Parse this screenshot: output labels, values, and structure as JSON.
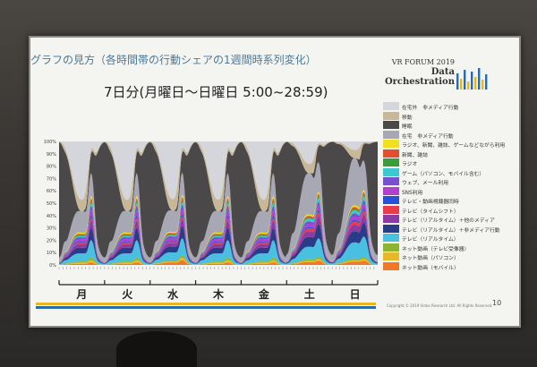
{
  "slide": {
    "title": "グラフの見方（各時間帯の行動シェアの1週間時系列変化）",
    "subtitle": "7日分(月曜日～日曜日 5:00~28:59)",
    "brand_line1": "VR FORUM 2019",
    "brand_line2": "Data",
    "brand_line3": "Orchestration",
    "copyright": "Copyright © 2019 Video Research Ltd. All Rights Reserved.",
    "page_number": "10"
  },
  "chart_data": {
    "type": "area",
    "stacked": true,
    "normalized": true,
    "title": "",
    "xlabel": "",
    "ylabel": "",
    "y_ticks": [
      "0%",
      "10%",
      "20%",
      "30%",
      "40%",
      "50%",
      "60%",
      "70%",
      "80%",
      "90%",
      "100%"
    ],
    "ylim": [
      0,
      100
    ],
    "day_labels": [
      "月",
      "火",
      "水",
      "木",
      "金",
      "土",
      "日"
    ],
    "x_range": [
      "5:00",
      "28:59"
    ],
    "series": [
      {
        "name": "ネット動画（モバイル）",
        "color": "#f07828",
        "values": [
          1,
          1,
          2,
          1,
          1,
          2,
          2
        ]
      },
      {
        "name": "ネット動画（パソコン）",
        "color": "#e8b828",
        "values": [
          1,
          1,
          1,
          1,
          1,
          1,
          1
        ]
      },
      {
        "name": "ネット動画（テレビ受像器）",
        "color": "#8cb432",
        "values": [
          1,
          1,
          1,
          1,
          1,
          1,
          1
        ]
      },
      {
        "name": "テレビ（リアルタイム）",
        "color": "#4ac0e0",
        "values": [
          7,
          7,
          7,
          7,
          7,
          9,
          10
        ]
      },
      {
        "name": "テレビ（リアルタイム）＋非メディア行動",
        "color": "#283c88",
        "values": [
          5,
          5,
          5,
          5,
          5,
          7,
          7
        ]
      },
      {
        "name": "テレビ（リアルタイム）＋他のメディア",
        "color": "#8c3ca0",
        "values": [
          3,
          3,
          3,
          3,
          3,
          4,
          4
        ]
      },
      {
        "name": "テレビ（タイムシフト）",
        "color": "#e83c4c",
        "values": [
          1,
          1,
          1,
          1,
          1,
          2,
          2
        ]
      },
      {
        "name": "テレビ・動画視聴器同時",
        "color": "#2850d8",
        "values": [
          1,
          1,
          1,
          1,
          1,
          1,
          1
        ]
      },
      {
        "name": "SNS利用",
        "color": "#b040d0",
        "values": [
          2,
          2,
          2,
          2,
          2,
          2,
          2
        ]
      },
      {
        "name": "ウェブ、メール利用",
        "color": "#7850d0",
        "values": [
          2,
          2,
          2,
          2,
          2,
          2,
          2
        ]
      },
      {
        "name": "ゲーム（パソコン、モバイル含む）",
        "color": "#40c8d0",
        "values": [
          1,
          1,
          1,
          1,
          1,
          2,
          2
        ]
      },
      {
        "name": "ラジオ",
        "color": "#3c9c3c",
        "values": [
          1,
          1,
          1,
          1,
          1,
          1,
          1
        ]
      },
      {
        "name": "新聞、雑誌",
        "color": "#e05030",
        "values": [
          1,
          1,
          1,
          1,
          1,
          1,
          1
        ]
      },
      {
        "name": "ラジオ、新聞、雑誌、ゲームなどながら利用",
        "color": "#f0e020",
        "values": [
          1,
          1,
          1,
          1,
          1,
          1,
          1
        ]
      },
      {
        "name": "在宅　非メディア行動",
        "color": "#a8a8b4",
        "values": [
          14,
          14,
          14,
          14,
          14,
          22,
          22
        ]
      },
      {
        "name": "睡眠",
        "color": "#4a4848",
        "values": [
          33,
          33,
          33,
          33,
          33,
          34,
          36
        ]
      },
      {
        "name": "移動",
        "color": "#c8b898",
        "values": [
          6,
          6,
          6,
          6,
          6,
          4,
          3
        ]
      },
      {
        "name": "在宅外　非メディア行動",
        "color": "#d4d6dc",
        "values": [
          19,
          19,
          19,
          19,
          19,
          6,
          2
        ]
      }
    ],
    "legend_position": "right"
  }
}
